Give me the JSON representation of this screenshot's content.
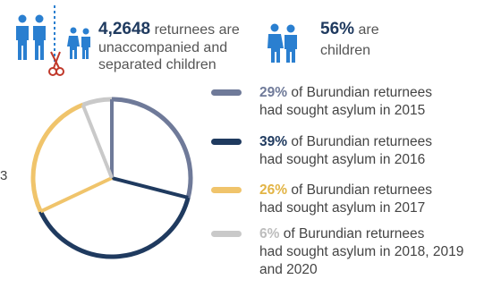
{
  "colors": {
    "navy": "#1f3a5f",
    "slate": "#6f7a99",
    "gold": "#f0c46b",
    "light": "#c9c9c9",
    "accent_blue": "#2a7fd0",
    "scissor_red": "#c0392b"
  },
  "header": {
    "stat1": {
      "number": "4,2648",
      "line1": " returnees are",
      "line2": "unaccompanied and",
      "line3": "separated children",
      "icons": [
        "family-icon",
        "children-icon",
        "scissors-icon"
      ]
    },
    "stat2": {
      "number": "56%",
      "line1": " are",
      "line2": "children",
      "icons": [
        "children-icon"
      ]
    }
  },
  "left_edge_mark": "3",
  "chart_data": {
    "type": "pie",
    "start_angle_deg": 0,
    "direction": "clockwise",
    "style": "outline",
    "slices": [
      {
        "label_pct": "29%",
        "value": 29,
        "color": "#6f7a99",
        "text1": " of Burundian returnees",
        "text2": "had sought asylum in 2015"
      },
      {
        "label_pct": "39%",
        "value": 39,
        "color": "#1f3a5f",
        "text1": " of Burundian returnees",
        "text2": "had sought asylum in 2016"
      },
      {
        "label_pct": "26%",
        "value": 26,
        "color": "#f0c46b",
        "text1": " of Burundian returnees",
        "text2": "had sought asylum in 2017"
      },
      {
        "label_pct": "6%",
        "value": 6,
        "color": "#c9c9c9",
        "text1": " of Burundian returnees",
        "text2": "had sought asylum in  2018, 2019",
        "text3": "and 2020"
      }
    ]
  }
}
